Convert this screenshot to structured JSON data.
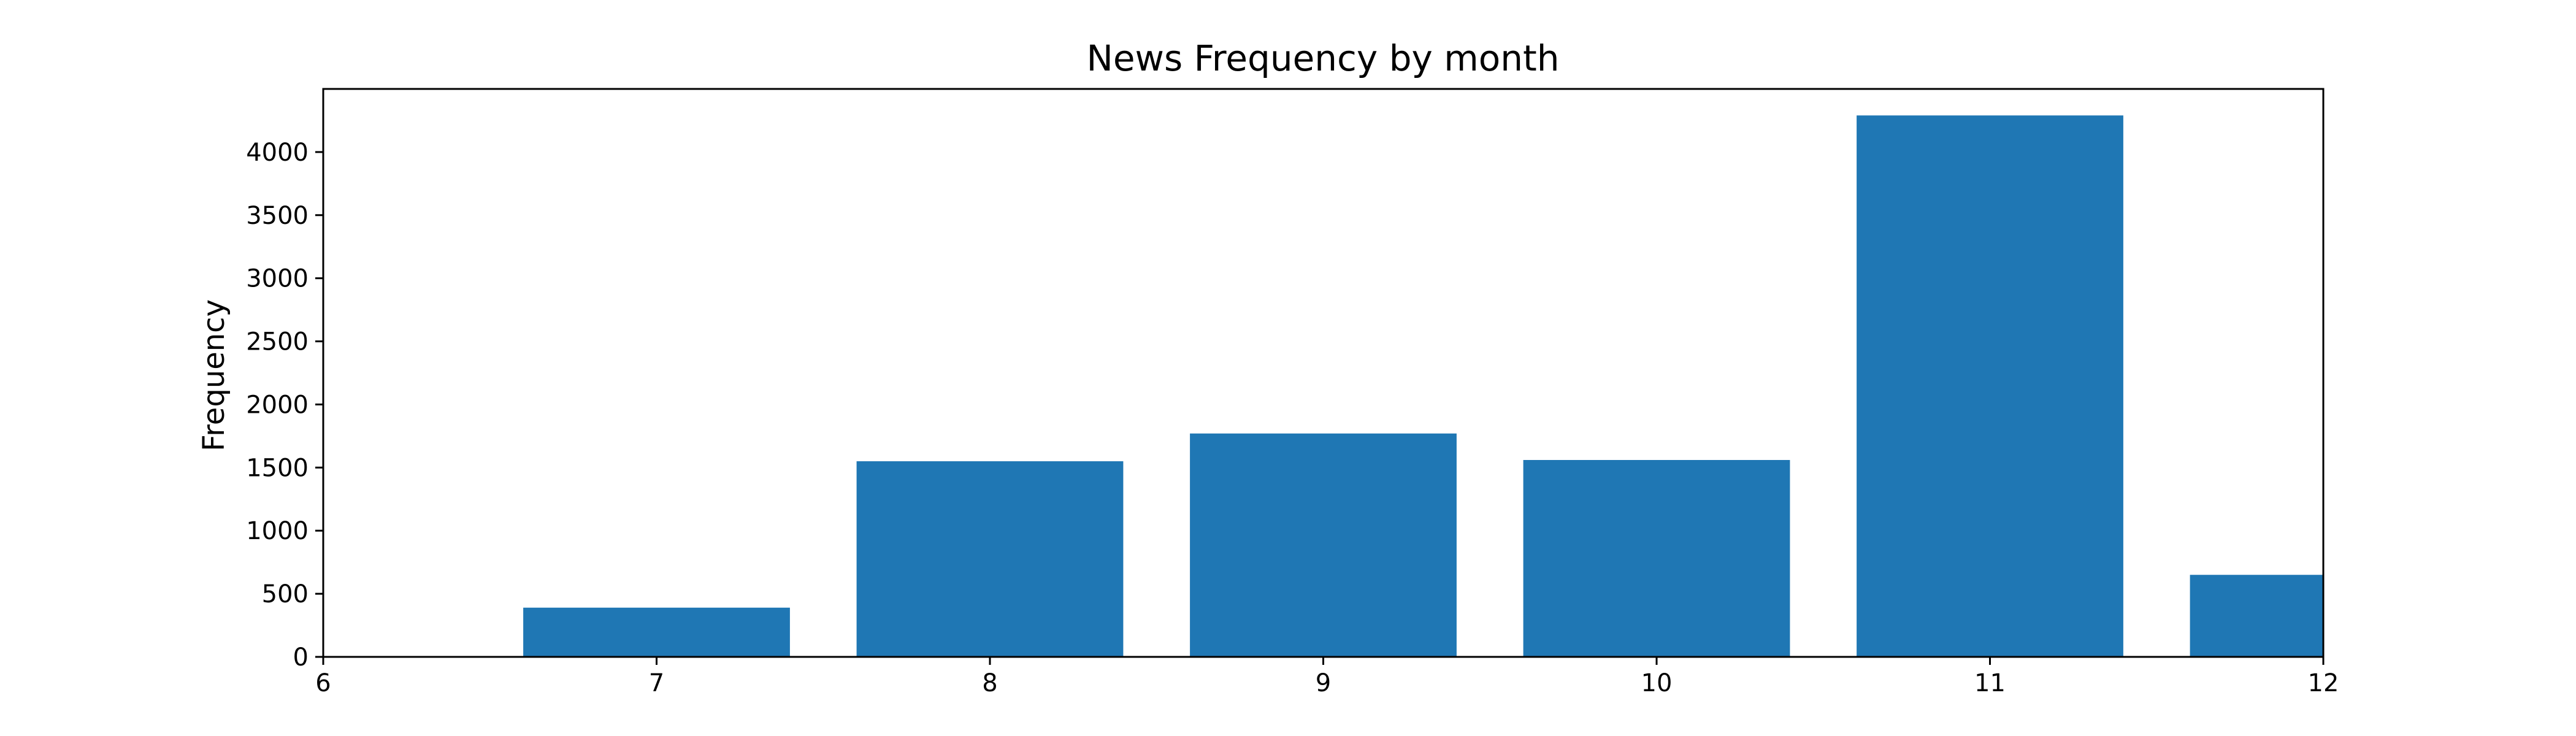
{
  "chart_data": {
    "type": "bar",
    "title": "News Frequency by month",
    "xlabel": "",
    "ylabel": "Frequency",
    "x": [
      7,
      8,
      9,
      10,
      11,
      12
    ],
    "values": [
      390,
      1550,
      1770,
      1560,
      4290,
      650
    ],
    "bar_width": 0.8,
    "xlim": [
      6,
      12
    ],
    "ylim": [
      0,
      4500
    ],
    "x_ticks": [
      6,
      7,
      8,
      9,
      10,
      11,
      12
    ],
    "y_ticks": [
      0,
      500,
      1000,
      1500,
      2000,
      2500,
      3000,
      3500,
      4000
    ],
    "grid": false,
    "legend": "none",
    "bar_color": "#1f77b4"
  }
}
